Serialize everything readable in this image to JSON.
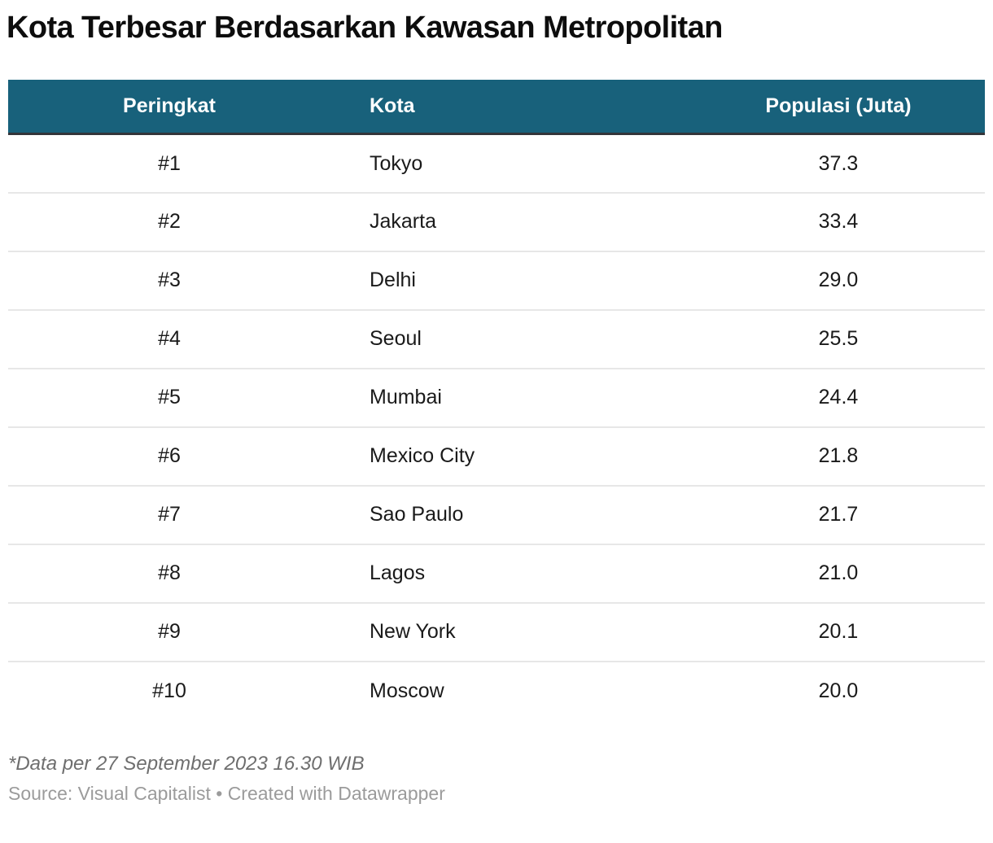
{
  "chart_data": {
    "type": "table",
    "title": "Kota Terbesar Berdasarkan Kawasan Metropolitan",
    "columns": [
      {
        "label": "Peringkat",
        "align": "center"
      },
      {
        "label": "Kota",
        "align": "left"
      },
      {
        "label": "Populasi (Juta)",
        "align": "center"
      }
    ],
    "rows": [
      {
        "rank": "#1",
        "city": "Tokyo",
        "population": "37.3"
      },
      {
        "rank": "#2",
        "city": "Jakarta",
        "population": "33.4"
      },
      {
        "rank": "#3",
        "city": "Delhi",
        "population": "29.0"
      },
      {
        "rank": "#4",
        "city": "Seoul",
        "population": "25.5"
      },
      {
        "rank": "#5",
        "city": "Mumbai",
        "population": "24.4"
      },
      {
        "rank": "#6",
        "city": "Mexico City",
        "population": "21.8"
      },
      {
        "rank": "#7",
        "city": "Sao Paulo",
        "population": "21.7"
      },
      {
        "rank": "#8",
        "city": "Lagos",
        "population": "21.0"
      },
      {
        "rank": "#9",
        "city": "New York",
        "population": "20.1"
      },
      {
        "rank": "#10",
        "city": "Moscow",
        "population": "20.0"
      }
    ],
    "footnote": "*Data per 27 September 2023 16.30 WIB",
    "source": "Source: Visual Capitalist • Created with Datawrapper"
  },
  "colors": {
    "header_bg": "#18617b",
    "header_text": "#ffffff",
    "header_border": "#33353a",
    "row_divider": "#e7e7e7",
    "title_text": "#0d0d0d",
    "body_text": "#1a1a1a",
    "footnote_text": "#6e6e6e",
    "source_text": "#9b9b9b",
    "background": "#ffffff"
  }
}
